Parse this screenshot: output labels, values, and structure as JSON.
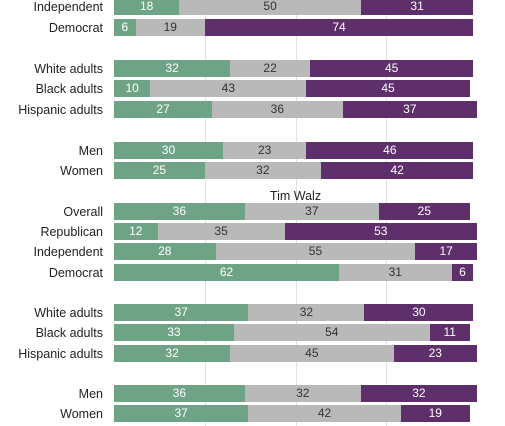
{
  "chart_data": [
    {
      "type": "bar",
      "orientation": "horizontal",
      "stacked": true,
      "title": "",
      "categories": [
        "Independent",
        "Democrat",
        "White adults",
        "Black adults",
        "Hispanic adults",
        "Men",
        "Women"
      ],
      "series": [
        {
          "values": [
            18,
            6,
            32,
            10,
            27,
            30,
            25
          ]
        },
        {
          "values": [
            50,
            19,
            22,
            43,
            36,
            23,
            32
          ]
        },
        {
          "values": [
            31,
            74,
            45,
            45,
            37,
            46,
            42
          ]
        }
      ],
      "colors": [
        "#6fa386",
        "#b9b9b9",
        "#5f2f6b"
      ],
      "xlim": [
        0,
        100
      ],
      "grid": true
    },
    {
      "type": "bar",
      "orientation": "horizontal",
      "stacked": true,
      "title": "Tim Walz",
      "categories": [
        "Overall",
        "Republican",
        "Independent",
        "Democrat",
        "White adults",
        "Black adults",
        "Hispanic adults",
        "Men",
        "Women"
      ],
      "series": [
        {
          "values": [
            36,
            12,
            28,
            62,
            37,
            33,
            32,
            36,
            37
          ]
        },
        {
          "values": [
            37,
            35,
            55,
            31,
            32,
            54,
            45,
            32,
            42
          ]
        },
        {
          "values": [
            25,
            53,
            17,
            6,
            30,
            11,
            23,
            32,
            19
          ]
        }
      ],
      "colors": [
        "#6fa386",
        "#b9b9b9",
        "#5f2f6b"
      ],
      "xlim": [
        0,
        100
      ],
      "grid": true
    }
  ]
}
